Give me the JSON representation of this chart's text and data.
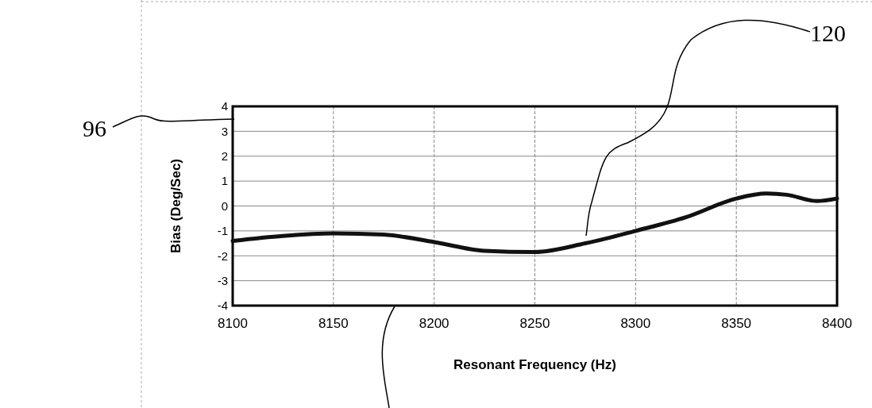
{
  "chart_data": {
    "type": "line",
    "xlabel": "Resonant Frequency (Hz)",
    "ylabel": "Bias (Deg/Sec)",
    "x": [
      8100,
      8125,
      8150,
      8175,
      8200,
      8225,
      8250,
      8275,
      8300,
      8325,
      8350,
      8365,
      8375,
      8390,
      8400
    ],
    "series": [
      {
        "color": "#111111",
        "values": [
          -1.4,
          -1.2,
          -1.1,
          -1.15,
          -1.45,
          -1.8,
          -1.85,
          -1.5,
          -1.0,
          -0.45,
          0.3,
          0.5,
          0.45,
          0.2,
          0.3
        ]
      }
    ],
    "xlim": [
      8100,
      8400
    ],
    "xticks": [
      8100,
      8150,
      8200,
      8250,
      8300,
      8350,
      8400
    ],
    "ylim": [
      -4,
      4
    ],
    "yticks": [
      -4,
      -3,
      -2,
      -1,
      0,
      1,
      2,
      3,
      4
    ],
    "grid": true,
    "marker": "none",
    "line_style": "solid",
    "annotations": [
      "96",
      "120"
    ]
  }
}
